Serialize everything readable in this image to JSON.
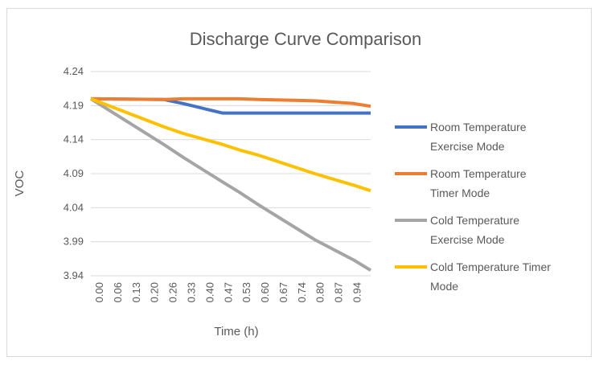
{
  "chart_data": {
    "type": "line",
    "title": "Discharge Curve Comparison",
    "xlabel": "Time (h)",
    "ylabel": "VOC",
    "ylim": [
      3.94,
      4.24
    ],
    "yticks": [
      "4.24",
      "4.19",
      "4.14",
      "4.09",
      "4.04",
      "3.99",
      "3.94"
    ],
    "xticks": [
      "0.00",
      "0.06",
      "0.13",
      "0.20",
      "0.26",
      "0.33",
      "0.40",
      "0.47",
      "0.53",
      "0.60",
      "0.67",
      "0.74",
      "0.80",
      "0.87",
      "0.94"
    ],
    "grid": true,
    "legend_position": "right",
    "x": [
      0.0,
      0.26,
      0.33,
      0.47,
      0.53,
      0.6,
      0.8,
      0.94,
      1.0
    ],
    "series": [
      {
        "name": "Room Temperature Exercise Mode",
        "legend_lines": [
          "Room Temperature",
          "Exercise Mode"
        ],
        "color": "#4472C4",
        "values": [
          4.2,
          4.199,
          4.193,
          4.179,
          4.179,
          4.179,
          4.179,
          4.179,
          4.179
        ]
      },
      {
        "name": "Room Temperature Timer Mode",
        "legend_lines": [
          "Room Temperature",
          "Timer Mode"
        ],
        "color": "#ED7D31",
        "values": [
          4.2,
          4.199,
          4.2,
          4.2,
          4.2,
          4.199,
          4.197,
          4.193,
          4.189
        ]
      },
      {
        "name": "Cold Temperature Exercise Mode",
        "legend_lines": [
          "Cold Temperature",
          "Exercise Mode"
        ],
        "color": "#A5A5A5",
        "values": [
          4.2,
          4.133,
          4.114,
          4.078,
          4.063,
          4.044,
          3.993,
          3.963,
          3.948
        ]
      },
      {
        "name": "Cold Temperature Timer Mode",
        "legend_lines": [
          "Cold Temperature Timer",
          "Mode"
        ],
        "color": "#FFC000",
        "values": [
          4.2,
          4.159,
          4.149,
          4.133,
          4.125,
          4.117,
          4.09,
          4.073,
          4.065
        ]
      }
    ]
  }
}
